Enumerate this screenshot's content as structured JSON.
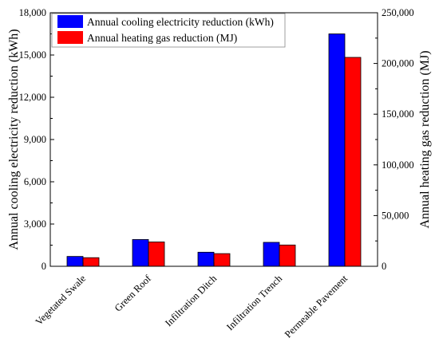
{
  "chart_data": {
    "type": "bar",
    "categories": [
      "Vegetated Swale",
      "Green Roof",
      "Infiltration Ditch",
      "Infiltration Trench",
      "Permeable Pavement"
    ],
    "series": [
      {
        "name": "Annual cooling electricity reduction (kWh)",
        "axis": "left",
        "color": "#0000FF",
        "values": [
          700,
          1900,
          1000,
          1700,
          16500
        ]
      },
      {
        "name": "Annual heating gas reduction (MJ)",
        "axis": "right",
        "color": "#FF0000",
        "values": [
          8500,
          24000,
          12500,
          21000,
          206000
        ]
      }
    ],
    "ylabel": "Annual cooling electricity reduction (kWh)",
    "ylabel_right": "Annual heating gas reduction (MJ)",
    "ylim": [
      0,
      18000
    ],
    "ylim_right": [
      0,
      250000
    ],
    "yticks": [
      "0",
      "3,000",
      "6,000",
      "9,000",
      "12,000",
      "15,000",
      "18,000"
    ],
    "yticks_right": [
      "0",
      "50,000",
      "100,000",
      "150,000",
      "200,000",
      "250,000"
    ],
    "legend_position": "top-left",
    "grid": false
  }
}
